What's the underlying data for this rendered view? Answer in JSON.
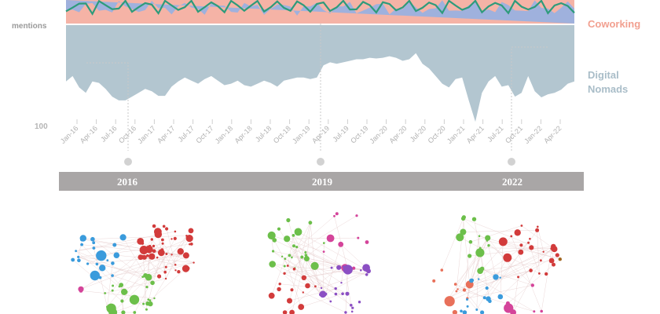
{
  "chart_data": [
    {
      "type": "area",
      "ylabel": "mentions",
      "ytick_labels": [
        "100"
      ],
      "series": [
        {
          "name": "Coworking",
          "color": "#f5b3a6"
        },
        {
          "name": "Digital Nomads",
          "color": "#b3c6d0"
        }
      ],
      "other_band_colors": [
        "#8fb0e6",
        "#2e9b7b"
      ],
      "x_tick_labels": [
        "Jan-16",
        "Apr-16",
        "Jul-16",
        "Oct-16",
        "Jan-17",
        "Apr-17",
        "Jul-17",
        "Oct-17",
        "Jan-18",
        "Apr-18",
        "Jul-18",
        "Oct-18",
        "Jan-19",
        "Apr-19",
        "Jul-19",
        "Oct-19",
        "Jan-20",
        "Apr-20",
        "Jul-20",
        "Oct-20",
        "Jan-21",
        "Apr-21",
        "Jul-21",
        "Oct-21",
        "Jan-22",
        "Apr-22"
      ],
      "digital_nomads_months": [
        "Jan-16",
        "Feb-16",
        "Mar-16",
        "Apr-16",
        "May-16",
        "Jun-16",
        "Jul-16",
        "Aug-16",
        "Sep-16",
        "Oct-16",
        "Nov-16",
        "Dec-16",
        "Jan-17",
        "Feb-17",
        "Mar-17",
        "Apr-17",
        "May-17",
        "Jun-17",
        "Jul-17",
        "Aug-17",
        "Sep-17",
        "Oct-17",
        "Nov-17",
        "Dec-17",
        "Jan-18",
        "Feb-18",
        "Mar-18",
        "Apr-18",
        "May-18",
        "Jun-18",
        "Jul-18",
        "Aug-18",
        "Sep-18",
        "Oct-18",
        "Nov-18",
        "Dec-18",
        "Jan-19",
        "Feb-19",
        "Mar-19",
        "Apr-19",
        "May-19",
        "Jun-19",
        "Jul-19",
        "Aug-19",
        "Sep-19",
        "Oct-19",
        "Nov-19",
        "Dec-19",
        "Jan-20",
        "Feb-20",
        "Mar-20",
        "Apr-20",
        "May-20",
        "Jun-20",
        "Jul-20",
        "Aug-20",
        "Sep-20",
        "Oct-20",
        "Nov-20",
        "Dec-20",
        "Jan-21",
        "Feb-21",
        "Mar-21",
        "Apr-21",
        "May-21",
        "Jun-21",
        "Jul-21",
        "Aug-21",
        "Sep-21",
        "Oct-21",
        "Nov-21",
        "Dec-21",
        "Jan-22",
        "Feb-22",
        "Mar-22",
        "Apr-22",
        "May-22",
        "Jun-22"
      ],
      "digital_nomads_level": [
        0.55,
        0.62,
        0.47,
        0.4,
        0.55,
        0.53,
        0.45,
        0.35,
        0.3,
        0.3,
        0.35,
        0.4,
        0.45,
        0.42,
        0.36,
        0.36,
        0.48,
        0.55,
        0.6,
        0.56,
        0.52,
        0.58,
        0.62,
        0.56,
        0.5,
        0.52,
        0.56,
        0.5,
        0.48,
        0.52,
        0.56,
        0.53,
        0.48,
        0.56,
        0.58,
        0.6,
        0.6,
        0.58,
        0.6,
        0.76,
        0.8,
        0.78,
        0.8,
        0.82,
        0.84,
        0.84,
        0.86,
        0.85,
        0.86,
        0.88,
        0.86,
        0.82,
        0.84,
        0.92,
        0.78,
        0.72,
        0.62,
        0.52,
        0.47,
        0.58,
        0.6,
        0.3,
        0.02,
        0.4,
        0.55,
        0.62,
        0.48,
        0.5,
        0.35,
        0.4,
        0.62,
        0.42,
        0.34,
        0.38,
        0.4,
        0.44,
        0.52,
        0.55
      ]
    },
    {
      "type": "scatter",
      "subtype": "network",
      "panels": [
        {
          "year": "2016",
          "clusters": [
            {
              "color": "#3a9bdc",
              "nodes": 22
            },
            {
              "color": "#d23b3b",
              "nodes": 48
            },
            {
              "color": "#6cbf4a",
              "nodes": 26
            },
            {
              "color": "#d4449a",
              "nodes": 2
            }
          ]
        },
        {
          "year": "2019",
          "clusters": [
            {
              "color": "#6cbf4a",
              "nodes": 24
            },
            {
              "color": "#d4449a",
              "nodes": 10
            },
            {
              "color": "#d23b3b",
              "nodes": 16
            },
            {
              "color": "#8b4fc3",
              "nodes": 24
            }
          ]
        },
        {
          "year": "2022",
          "clusters": [
            {
              "color": "#6cbf4a",
              "nodes": 16
            },
            {
              "color": "#d23b3b",
              "nodes": 24
            },
            {
              "color": "#e8705a",
              "nodes": 12
            },
            {
              "color": "#3a9bdc",
              "nodes": 16
            },
            {
              "color": "#d4449a",
              "nodes": 6
            },
            {
              "color": "#a0651f",
              "nodes": 1
            }
          ]
        }
      ]
    }
  ],
  "year_bar": {
    "labels": [
      "2016",
      "2019",
      "2022"
    ],
    "color": "#a9a6a6"
  }
}
